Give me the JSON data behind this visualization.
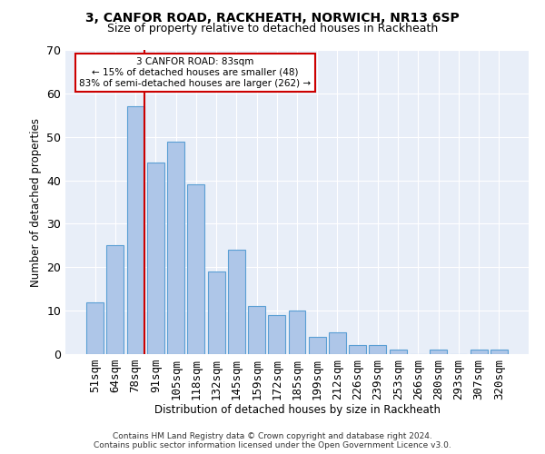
{
  "title1": "3, CANFOR ROAD, RACKHEATH, NORWICH, NR13 6SP",
  "title2": "Size of property relative to detached houses in Rackheath",
  "xlabel": "Distribution of detached houses by size in Rackheath",
  "ylabel": "Number of detached properties",
  "categories": [
    "51sqm",
    "64sqm",
    "78sqm",
    "91sqm",
    "105sqm",
    "118sqm",
    "132sqm",
    "145sqm",
    "159sqm",
    "172sqm",
    "185sqm",
    "199sqm",
    "212sqm",
    "226sqm",
    "239sqm",
    "253sqm",
    "266sqm",
    "280sqm",
    "293sqm",
    "307sqm",
    "320sqm"
  ],
  "values": [
    12,
    25,
    57,
    44,
    49,
    39,
    19,
    24,
    11,
    9,
    10,
    4,
    5,
    2,
    2,
    1,
    0,
    1,
    0,
    1,
    1
  ],
  "bar_color": "#aec6e8",
  "bar_edge_color": "#5a9fd4",
  "vline_index": 2,
  "vline_color": "#cc0000",
  "ylim": [
    0,
    70
  ],
  "yticks": [
    0,
    10,
    20,
    30,
    40,
    50,
    60,
    70
  ],
  "annotation_text": "3 CANFOR ROAD: 83sqm\n← 15% of detached houses are smaller (48)\n83% of semi-detached houses are larger (262) →",
  "annotation_box_color": "#ffffff",
  "annotation_box_edge": "#cc0000",
  "footer1": "Contains HM Land Registry data © Crown copyright and database right 2024.",
  "footer2": "Contains public sector information licensed under the Open Government Licence v3.0.",
  "background_color": "#e8eef8",
  "grid_color": "#ffffff"
}
